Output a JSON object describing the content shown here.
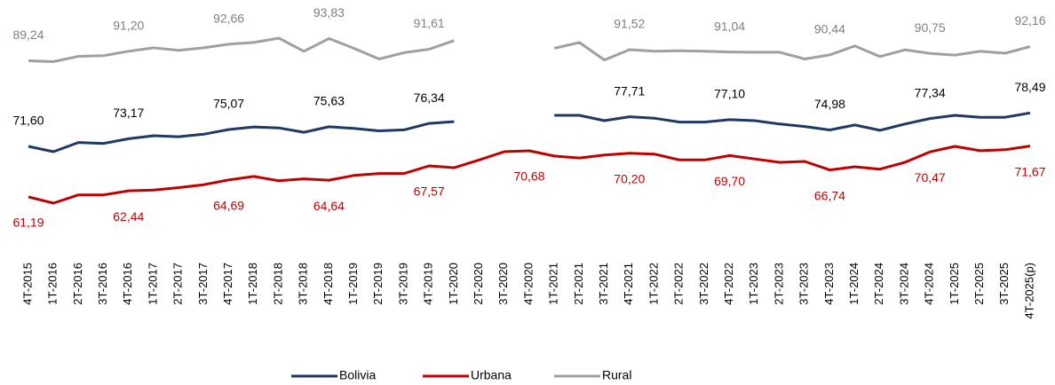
{
  "chart_data": {
    "type": "line",
    "categories": [
      "4T-2015",
      "1T-2016",
      "2T-2016",
      "3T-2016",
      "4T-2016",
      "1T-2017",
      "2T-2017",
      "3T-2017",
      "4T-2017",
      "1T-2018",
      "2T-2018",
      "3T-2018",
      "4T-2018",
      "1T-2019",
      "2T-2019",
      "3T-2019",
      "4T-2019",
      "1T-2020",
      "2T-2020",
      "3T-2020",
      "4T-2020",
      "1T-2021",
      "2T-2021",
      "3T-2021",
      "4T-2021",
      "1T-2022",
      "2T-2022",
      "3T-2022",
      "4T-2022",
      "1T-2023",
      "2T-2023",
      "3T-2023",
      "4T-2023",
      "1T-2024",
      "2T-2024",
      "3T-2024",
      "4T-2024",
      "1T-2025",
      "2T-2025",
      "3T-2025",
      "4T-2025(p)"
    ],
    "series": [
      {
        "name": "Bolivia",
        "color": "#1f3864",
        "label_color": "#000000",
        "label_side": "above",
        "values": [
          71.6,
          70.5,
          72.4,
          72.2,
          73.17,
          73.8,
          73.6,
          74.1,
          75.07,
          75.6,
          75.4,
          74.5,
          75.63,
          75.3,
          74.8,
          75.0,
          76.34,
          76.7,
          null,
          null,
          null,
          78.0,
          78.0,
          76.9,
          77.71,
          77.4,
          76.6,
          76.6,
          77.1,
          76.9,
          76.2,
          75.7,
          74.98,
          76.0,
          74.9,
          76.2,
          77.34,
          78.0,
          77.6,
          77.6,
          78.49
        ],
        "value_labels": [
          "71,60",
          null,
          null,
          null,
          "73,17",
          null,
          null,
          null,
          "75,07",
          null,
          null,
          null,
          "75,63",
          null,
          null,
          null,
          "76,34",
          null,
          null,
          null,
          null,
          null,
          null,
          null,
          "77,71",
          null,
          null,
          null,
          "77,10",
          null,
          null,
          null,
          "74,98",
          null,
          null,
          null,
          "77,34",
          null,
          null,
          null,
          "78,49"
        ]
      },
      {
        "name": "Urbana",
        "color": "#c00000",
        "label_color": "#c00000",
        "label_side": "below",
        "values": [
          61.19,
          59.9,
          61.6,
          61.6,
          62.44,
          62.6,
          63.1,
          63.7,
          64.69,
          65.4,
          64.5,
          64.9,
          64.64,
          65.6,
          66.0,
          66.0,
          67.57,
          67.2,
          68.8,
          70.5,
          70.68,
          69.6,
          69.2,
          69.8,
          70.2,
          70.0,
          68.8,
          68.8,
          69.7,
          69.0,
          68.3,
          68.5,
          66.74,
          67.4,
          66.9,
          68.3,
          70.47,
          71.6,
          70.7,
          70.9,
          71.67
        ],
        "value_labels": [
          "61,19",
          null,
          null,
          null,
          "62,44",
          null,
          null,
          null,
          "64,69",
          null,
          null,
          null,
          "64,64",
          null,
          null,
          null,
          "67,57",
          null,
          null,
          null,
          "70,68",
          null,
          null,
          null,
          "70,20",
          null,
          null,
          null,
          "69,70",
          null,
          null,
          null,
          "66,74",
          null,
          null,
          null,
          "70,47",
          null,
          null,
          null,
          "71,67"
        ]
      },
      {
        "name": "Rural",
        "color": "#a0a0a0",
        "label_color": "#808080",
        "label_side": "above",
        "values": [
          89.24,
          89.06,
          90.16,
          90.3,
          91.2,
          91.9,
          91.4,
          91.9,
          92.66,
          93.0,
          93.9,
          91.2,
          93.83,
          91.8,
          89.6,
          90.9,
          91.61,
          93.4,
          null,
          null,
          null,
          91.8,
          93.0,
          89.4,
          91.52,
          91.2,
          91.3,
          91.2,
          91.04,
          91.0,
          91.0,
          89.6,
          90.44,
          92.3,
          90.1,
          91.5,
          90.75,
          90.4,
          91.2,
          90.8,
          92.16
        ],
        "value_labels": [
          "89,24",
          null,
          null,
          null,
          "91,20",
          null,
          null,
          null,
          "92,66",
          null,
          null,
          null,
          "93,83",
          null,
          null,
          null,
          "91,61",
          null,
          null,
          null,
          null,
          null,
          null,
          null,
          "91,52",
          null,
          null,
          null,
          "91,04",
          null,
          null,
          null,
          "90,44",
          null,
          null,
          null,
          "90,75",
          null,
          null,
          null,
          "92,16"
        ]
      }
    ],
    "legend": "bottom"
  }
}
